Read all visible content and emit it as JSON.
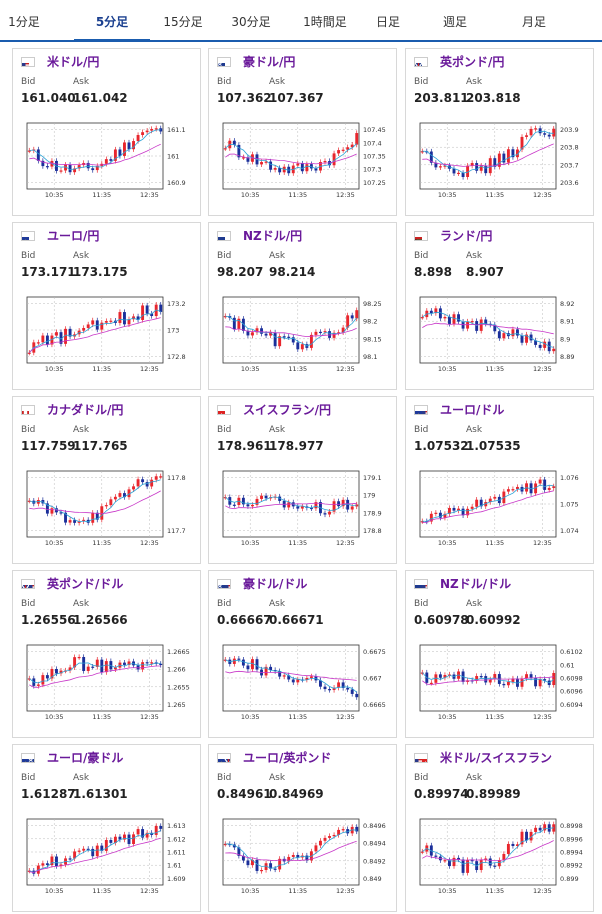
{
  "tabs": [
    {
      "label": "1分足",
      "active": false
    },
    {
      "label": "5分足",
      "active": true
    },
    {
      "label": "15分足",
      "active": false
    },
    {
      "label": "30分足",
      "active": false
    },
    {
      "label": "1時間足",
      "active": false
    },
    {
      "label": "日足",
      "active": false
    },
    {
      "label": "週足",
      "active": false
    },
    {
      "label": "月足",
      "active": false
    }
  ],
  "labels": {
    "bid": "Bid",
    "ask": "Ask"
  },
  "colors": {
    "up": "#e8262d",
    "down": "#1b2f9a",
    "ma_short": "#2aa3d6",
    "ma_long": "#c837c8",
    "title": "#6a1a9a",
    "tab_active": "#1a5cae"
  },
  "cards": [
    {
      "title": "米ドル/円",
      "flag": "us-jp",
      "bid": "161.040",
      "ask": "161.042",
      "ticks": [
        "161.1",
        "161",
        "160.9"
      ],
      "xticks": [
        "10:35",
        "11:35",
        "12:35"
      ],
      "trend": "dip-rise"
    },
    {
      "title": "豪ドル/円",
      "flag": "au-jp",
      "bid": "107.362",
      "ask": "107.367",
      "ticks": [
        "107.45",
        "107.4",
        "107.35",
        "107.3",
        "107.25"
      ],
      "xticks": [
        "10:35",
        "11:35",
        "12:35"
      ],
      "trend": "fall-rise"
    },
    {
      "title": "英ポンド/円",
      "flag": "gb-jp",
      "bid": "203.811",
      "ask": "203.818",
      "ticks": [
        "203.9",
        "203.8",
        "203.7",
        "203.6"
      ],
      "xticks": [
        "10:35",
        "11:35",
        "12:35"
      ],
      "trend": "dip-rise"
    },
    {
      "title": "ユーロ/円",
      "flag": "eu-jp",
      "bid": "173.171",
      "ask": "173.175",
      "ticks": [
        "173.2",
        "173",
        "172.8"
      ],
      "xticks": [
        "10:35",
        "11:35",
        "12:35"
      ],
      "trend": "rise"
    },
    {
      "title": "NZドル/円",
      "flag": "nz-jp",
      "bid": "98.207",
      "ask": "98.214",
      "ticks": [
        "98.25",
        "98.2",
        "98.15",
        "98.1"
      ],
      "xticks": [
        "10:35",
        "11:35",
        "12:35"
      ],
      "trend": "fall-rise"
    },
    {
      "title": "ランド/円",
      "flag": "za-jp",
      "bid": "8.898",
      "ask": "8.907",
      "ticks": [
        "8.92",
        "8.91",
        "8.9",
        "8.89"
      ],
      "xticks": [
        "10:35",
        "11:35",
        "12:35"
      ],
      "trend": "fall"
    },
    {
      "title": "カナダドル/円",
      "flag": "ca-jp",
      "bid": "117.759",
      "ask": "117.765",
      "ticks": [
        "117.8",
        "117.7"
      ],
      "xticks": [
        "10:35",
        "11:35",
        "12:35"
      ],
      "trend": "dip-rise"
    },
    {
      "title": "スイスフラン/円",
      "flag": "ch-jp",
      "bid": "178.961",
      "ask": "178.977",
      "ticks": [
        "179.1",
        "179",
        "178.9",
        "178.8"
      ],
      "xticks": [
        "10:35",
        "11:35",
        "12:35"
      ],
      "trend": "flat"
    },
    {
      "title": "ユーロ/ドル",
      "flag": "eu-us",
      "bid": "1.07532",
      "ask": "1.07535",
      "ticks": [
        "1.076",
        "1.075",
        "1.074"
      ],
      "xticks": [
        "10:35",
        "11:35",
        "12:35"
      ],
      "trend": "rise"
    },
    {
      "title": "英ポンド/ドル",
      "flag": "gb-us",
      "bid": "1.26556",
      "ask": "1.26566",
      "ticks": [
        "1.2665",
        "1.266",
        "1.2655",
        "1.265"
      ],
      "xticks": [
        "10:35",
        "11:35",
        "12:35"
      ],
      "trend": "rise-flat"
    },
    {
      "title": "豪ドル/ドル",
      "flag": "au-us",
      "bid": "0.66667",
      "ask": "0.66671",
      "ticks": [
        "0.6675",
        "0.667",
        "0.6665"
      ],
      "xticks": [
        "10:35",
        "11:35",
        "12:35"
      ],
      "trend": "fall"
    },
    {
      "title": "NZドル/ドル",
      "flag": "nz-us",
      "bid": "0.60978",
      "ask": "0.60992",
      "ticks": [
        "0.6102",
        "0.61",
        "0.6098",
        "0.6096",
        "0.6094"
      ],
      "xticks": [
        "10:35",
        "11:35",
        "12:35"
      ],
      "trend": "flat"
    },
    {
      "title": "ユーロ/豪ドル",
      "flag": "eu-au",
      "bid": "1.61287",
      "ask": "1.61301",
      "ticks": [
        "1.613",
        "1.612",
        "1.611",
        "1.61",
        "1.609"
      ],
      "xticks": [
        "10:35",
        "11:35",
        "12:35"
      ],
      "trend": "rise"
    },
    {
      "title": "ユーロ/英ポンド",
      "flag": "eu-gb",
      "bid": "0.84961",
      "ask": "0.84969",
      "ticks": [
        "0.8496",
        "0.8494",
        "0.8492",
        "0.849"
      ],
      "xticks": [
        "10:35",
        "11:35",
        "12:35"
      ],
      "trend": "dip-rise"
    },
    {
      "title": "米ドル/スイスフラン",
      "flag": "us-ch",
      "bid": "0.89974",
      "ask": "0.89989",
      "ticks": [
        "0.8998",
        "0.8996",
        "0.8994",
        "0.8992",
        "0.899"
      ],
      "xticks": [
        "10:35",
        "11:35",
        "12:35"
      ],
      "trend": "dip-rise"
    }
  ]
}
